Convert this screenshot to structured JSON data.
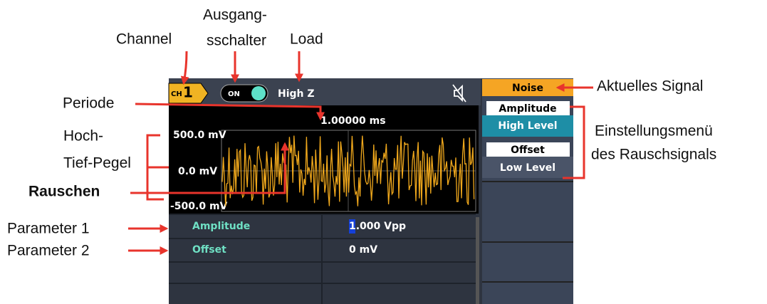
{
  "annotations": {
    "channel": "Channel",
    "output_switch": [
      "Ausgang-",
      "sschalter"
    ],
    "load": "Load",
    "period": "Periode",
    "high_low_level": [
      "Hoch-",
      "Tief-Pegel"
    ],
    "noise": "Rauschen",
    "parameter_1": "Parameter 1",
    "parameter_2": "Parameter 2",
    "current_signal": "Aktuelles Signal",
    "settings_menu": [
      "Einstellungsmenü",
      "des Rauschsignals"
    ]
  },
  "screen": {
    "channel_label": "CH",
    "channel_number": "1",
    "output": "ON",
    "load": "High Z",
    "period": "1.00000 ms",
    "y_labels": [
      "500.0 mV",
      "0.0 mV",
      "-500.0 mV"
    ],
    "parameters": [
      {
        "name": "Amplitude",
        "value": "1.000 Vpp"
      },
      {
        "name": "Offset",
        "value": "0 mV"
      }
    ],
    "menu": {
      "title": "Noise",
      "items": [
        "Amplitude",
        "High Level",
        "Offset",
        "Low Level"
      ]
    }
  }
}
